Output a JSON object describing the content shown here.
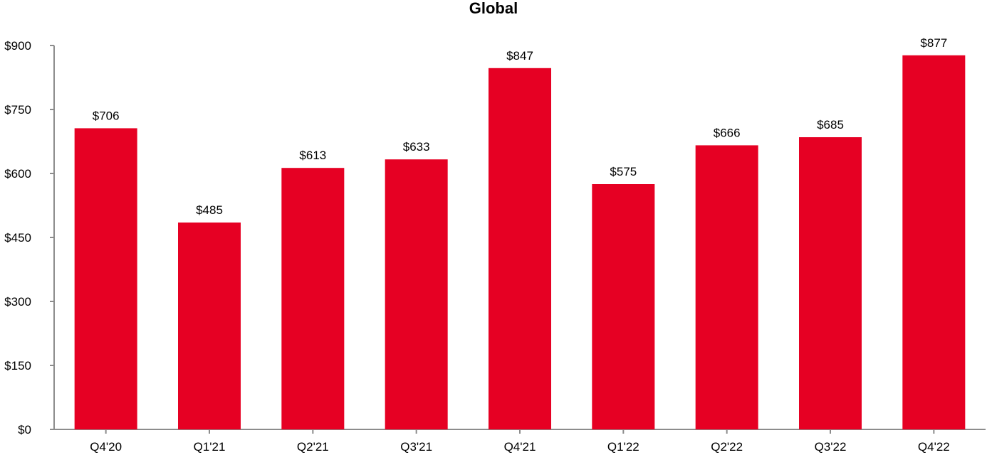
{
  "chart_data": {
    "type": "bar",
    "title": "Global",
    "xlabel": "",
    "ylabel": "",
    "categories": [
      "Q4'20",
      "Q1'21",
      "Q2'21",
      "Q3'21",
      "Q4'21",
      "Q1'22",
      "Q2'22",
      "Q3'22",
      "Q4'22"
    ],
    "values": [
      706,
      485,
      613,
      633,
      847,
      575,
      666,
      685,
      877
    ],
    "value_labels": [
      "$706",
      "$485",
      "$613",
      "$633",
      "$847",
      "$575",
      "$666",
      "$685",
      "$877"
    ],
    "ylim": [
      0,
      900
    ],
    "yticks": [
      0,
      150,
      300,
      450,
      600,
      750,
      900
    ],
    "ytick_labels": [
      "$0",
      "$150",
      "$300",
      "$450",
      "$600",
      "$750",
      "$900"
    ],
    "grid": false,
    "legend": "none",
    "colors": {
      "bar": "#e60023",
      "axis": "#8c8c8c",
      "text": "#000000"
    }
  }
}
